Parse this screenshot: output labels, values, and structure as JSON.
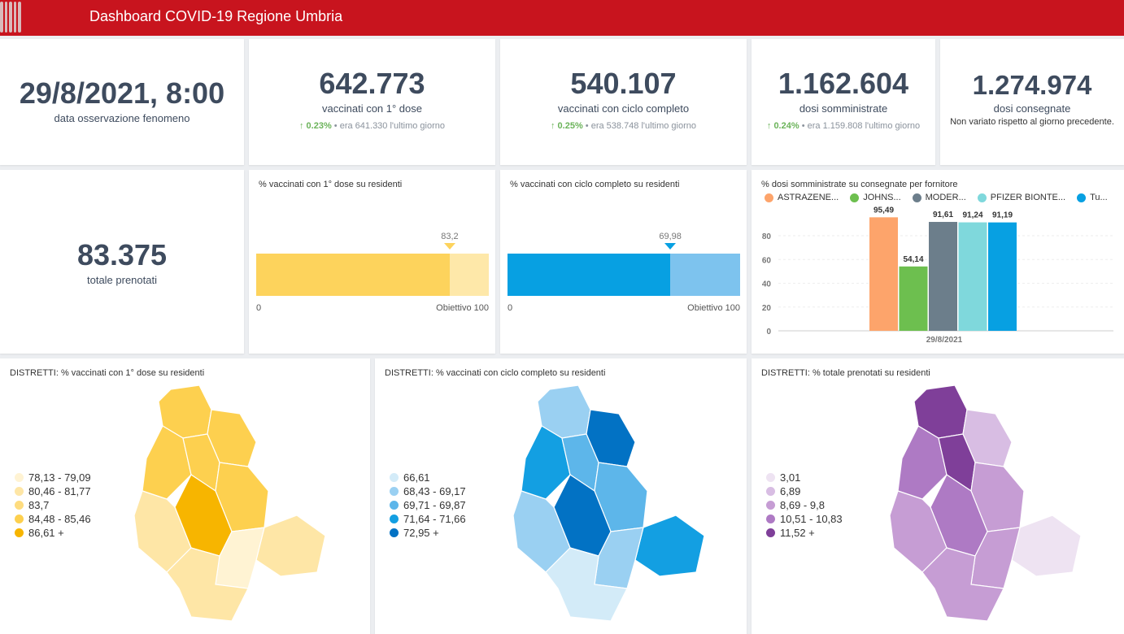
{
  "header": {
    "title": "Dashboard COVID-19 Regione Umbria"
  },
  "kpis": {
    "date": {
      "value": "29/8/2021, 8:00",
      "label": "data osservazione fenomeno"
    },
    "first_dose": {
      "value": "642.773",
      "label": "vaccinati con 1° dose",
      "change": "0.23%",
      "prev": "• era 641.330",
      "suffix": "l'ultimo giorno"
    },
    "full_cycle": {
      "value": "540.107",
      "label": "vaccinati con ciclo completo",
      "change": "0.25%",
      "prev": "• era 538.748",
      "suffix": "l'ultimo giorno"
    },
    "administered": {
      "value": "1.162.604",
      "label": "dosi somministrate",
      "change": "0.24%",
      "prev": "• era 1.159.808",
      "suffix": "l'ultimo giorno"
    },
    "delivered": {
      "value": "1.274.974",
      "label": "dosi consegnate",
      "note": "Non variato rispetto al giorno precedente."
    },
    "booked": {
      "value": "83.375",
      "label": "totale prenotati"
    }
  },
  "progress": [
    {
      "title": "% vaccinati con 1° dose su residenti",
      "value": 83.2,
      "value_label": "83,2",
      "min_label": "0",
      "goal_label": "Obiettivo 100",
      "color": "#fdd35c",
      "rest": "#fee8a9"
    },
    {
      "title": "% vaccinati con ciclo completo su residenti",
      "value": 69.98,
      "value_label": "69,98",
      "min_label": "0",
      "goal_label": "Obiettivo 100",
      "color": "#07a0e2",
      "rest": "#7dc3ee"
    }
  ],
  "chart_data": {
    "type": "bar",
    "title": "% dosi somministrate su consegnate per fornitore",
    "categories": [
      "29/8/2021"
    ],
    "series": [
      {
        "name": "ASTRAZENE...",
        "values": [
          95.49
        ],
        "label": "95,49",
        "color": "#fda46b"
      },
      {
        "name": "JOHNS...",
        "values": [
          54.14
        ],
        "label": "54,14",
        "color": "#6dbf4f"
      },
      {
        "name": "MODER...",
        "values": [
          91.61
        ],
        "label": "91,61",
        "color": "#6c7e8b"
      },
      {
        "name": "PFIZER BIONTE...",
        "values": [
          91.24
        ],
        "label": "91,24",
        "color": "#7fd8dc"
      },
      {
        "name": "Tu...",
        "values": [
          91.19
        ],
        "label": "91,19",
        "color": "#07a0e2"
      }
    ],
    "yticks": [
      "0",
      "20",
      "40",
      "60",
      "80"
    ],
    "ylim": [
      0,
      100
    ],
    "legend": "top"
  },
  "maps": [
    {
      "title": "DISTRETTI: % vaccinati con 1° dose su residenti",
      "legend": [
        "78,13 - 79,09",
        "80,46 - 81,77",
        "83,7",
        "84,48 - 85,46",
        "86,61 +"
      ],
      "colors": [
        "#fff3d3",
        "#fee6a6",
        "#fedc7f",
        "#fdd04f",
        "#f7b500"
      ],
      "district_classes": [
        3,
        3,
        3,
        3,
        3,
        4,
        1,
        1,
        0,
        1
      ]
    },
    {
      "title": "DISTRETTI: % vaccinati con ciclo completo su residenti",
      "legend": [
        "66,61",
        "68,43 - 69,17",
        "69,71 - 69,87",
        "71,64 - 71,66",
        "72,95 +"
      ],
      "colors": [
        "#d3ebf8",
        "#9ad0f2",
        "#5db6ea",
        "#139fe2",
        "#0272c4"
      ],
      "district_classes": [
        1,
        4,
        3,
        2,
        2,
        4,
        1,
        3,
        1,
        0
      ]
    },
    {
      "title": "DISTRETTI: % totale prenotati su residenti",
      "legend": [
        "3,01",
        "6,89",
        "8,69 - 9,8",
        "10,51 - 10,83",
        "11,52 +"
      ],
      "colors": [
        "#eee3f2",
        "#d8bde3",
        "#c69dd4",
        "#ae7ac4",
        "#7f3f99"
      ],
      "district_classes": [
        4,
        1,
        3,
        4,
        2,
        3,
        2,
        0,
        2,
        2
      ]
    }
  ]
}
